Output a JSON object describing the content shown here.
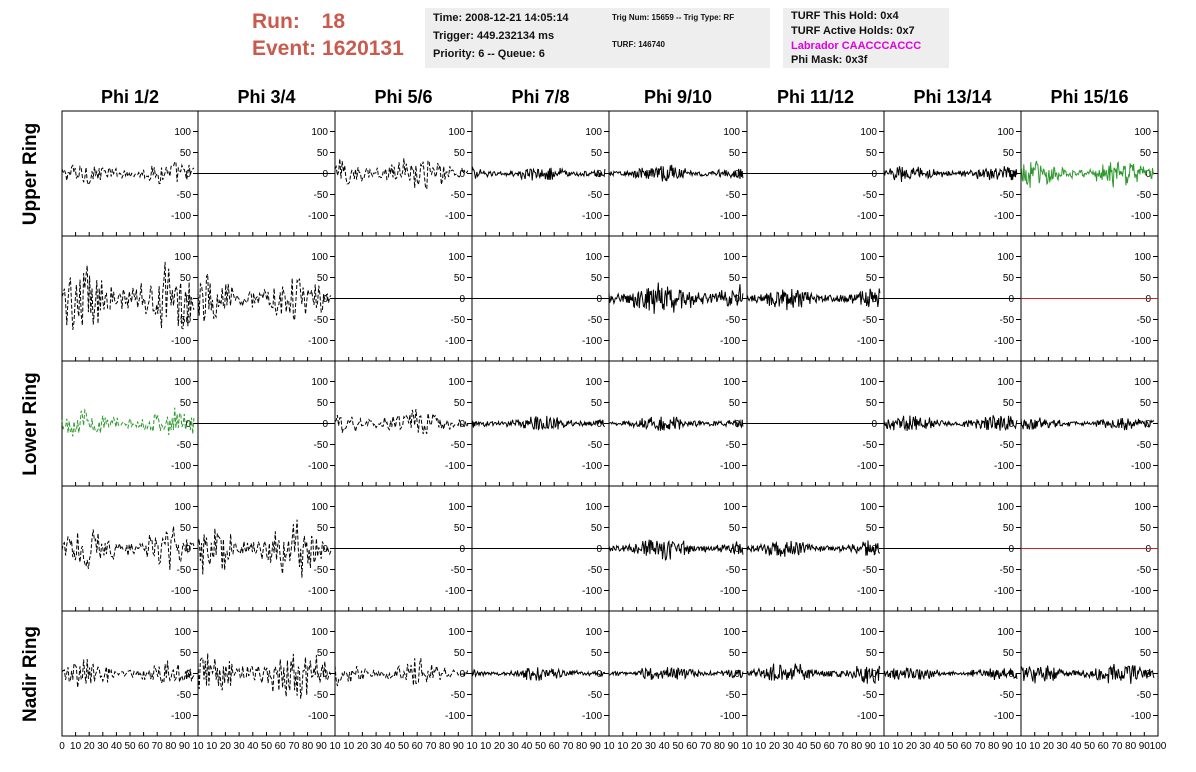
{
  "run_label": "Run:",
  "run_value": "18",
  "event_label": "Event:",
  "event_value": "1620131",
  "info_time": {
    "time": "Time: 2008-12-21 14:05:14",
    "trigger": "Trigger: 449.232134 ms",
    "priority": "Priority: 6 -- Queue: 6"
  },
  "info_trig": {
    "trig": "Trig Num: 15659 -- Trig Type: RF",
    "turf": "TURF: 146740"
  },
  "info_turf": {
    "this_hold": "TURF This Hold: 0x4",
    "active_holds": "TURF Active Holds: 0x7",
    "labrador": "Labrador CAACCCACCC",
    "phi_mask": "Phi Mask: 0x3f"
  },
  "colors": {
    "run_text": "#c95a4d",
    "labrador_text": "#e000e0",
    "trace_default": "#000000",
    "trace_green": "#2e9a2e",
    "trace_red": "#cc2222",
    "info_bg": "#eeeeee"
  },
  "chart_data": {
    "type": "line",
    "columns": [
      "Phi 1/2",
      "Phi 3/4",
      "Phi 5/6",
      "Phi 7/8",
      "Phi 9/10",
      "Phi 11/12",
      "Phi 13/14",
      "Phi 15/16"
    ],
    "rows": [
      "Upper Ring",
      "",
      "Lower Ring",
      "",
      "Nadir Ring"
    ],
    "xlim": [
      0,
      100
    ],
    "ylim": [
      -125,
      125
    ],
    "ytick_values": [
      -100,
      -50,
      0,
      50,
      100
    ],
    "xtick_values": [
      0,
      10,
      20,
      30,
      40,
      50,
      60,
      70,
      80,
      90,
      100
    ],
    "xtick_labels_first": [
      "0",
      "10",
      "20",
      "30",
      "40",
      "50",
      "60",
      "70",
      "80",
      "90",
      "10"
    ],
    "xtick_labels_rest": [
      "",
      "10",
      "20",
      "30",
      "40",
      "50",
      "60",
      "70",
      "80",
      "90",
      "10"
    ],
    "xtick_labels_last": [
      "",
      "10",
      "20",
      "30",
      "40",
      "50",
      "60",
      "70",
      "80",
      "90",
      "100"
    ],
    "grid": false,
    "panels": [
      [
        {
          "style": "dashed",
          "color": "black",
          "amplitude": 25,
          "x_end": 97
        },
        {
          "style": "flat",
          "color": "black",
          "amplitude": 0,
          "x_end": 100
        },
        {
          "style": "dashed",
          "color": "black",
          "amplitude": 38,
          "x_end": 97
        },
        {
          "style": "solid",
          "color": "black",
          "amplitude": 16,
          "x_end": 97
        },
        {
          "style": "solid",
          "color": "black",
          "amplitude": 18,
          "x_end": 97
        },
        {
          "style": "flat",
          "color": "black",
          "amplitude": 0,
          "x_end": 100
        },
        {
          "style": "solid",
          "color": "black",
          "amplitude": 17,
          "x_end": 97
        },
        {
          "style": "solid",
          "color": "green",
          "amplitude": 28,
          "x_end": 97
        }
      ],
      [
        {
          "style": "dashed",
          "color": "black",
          "amplitude": 75,
          "x_end": 97
        },
        {
          "style": "dashed",
          "color": "black",
          "amplitude": 55,
          "x_end": 97
        },
        {
          "style": "flat",
          "color": "black",
          "amplitude": 0,
          "x_end": 100
        },
        {
          "style": "flat",
          "color": "black",
          "amplitude": 0,
          "x_end": 100
        },
        {
          "style": "solid",
          "color": "black",
          "amplitude": 35,
          "x_end": 97
        },
        {
          "style": "solid",
          "color": "black",
          "amplitude": 22,
          "x_end": 97
        },
        {
          "style": "flat",
          "color": "black",
          "amplitude": 0,
          "x_end": 100
        },
        {
          "style": "flat",
          "color": "red",
          "amplitude": 0,
          "x_end": 100
        }
      ],
      [
        {
          "style": "dashed",
          "color": "green",
          "amplitude": 30,
          "x_end": 97
        },
        {
          "style": "flat",
          "color": "black",
          "amplitude": 0,
          "x_end": 100
        },
        {
          "style": "dashed",
          "color": "black",
          "amplitude": 30,
          "x_end": 97
        },
        {
          "style": "solid",
          "color": "black",
          "amplitude": 16,
          "x_end": 97
        },
        {
          "style": "solid",
          "color": "black",
          "amplitude": 16,
          "x_end": 97
        },
        {
          "style": "flat",
          "color": "black",
          "amplitude": 0,
          "x_end": 100
        },
        {
          "style": "solid",
          "color": "black",
          "amplitude": 18,
          "x_end": 97
        },
        {
          "style": "solid",
          "color": "black",
          "amplitude": 14,
          "x_end": 97
        }
      ],
      [
        {
          "style": "dashed",
          "color": "black",
          "amplitude": 45,
          "x_end": 97
        },
        {
          "style": "dashed",
          "color": "black",
          "amplitude": 60,
          "x_end": 97
        },
        {
          "style": "flat",
          "color": "black",
          "amplitude": 0,
          "x_end": 100
        },
        {
          "style": "flat",
          "color": "black",
          "amplitude": 0,
          "x_end": 100
        },
        {
          "style": "solid",
          "color": "black",
          "amplitude": 22,
          "x_end": 97
        },
        {
          "style": "solid",
          "color": "black",
          "amplitude": 18,
          "x_end": 97
        },
        {
          "style": "flat",
          "color": "black",
          "amplitude": 0,
          "x_end": 100
        },
        {
          "style": "flat",
          "color": "red",
          "amplitude": 0,
          "x_end": 100
        }
      ],
      [
        {
          "style": "dashed",
          "color": "black",
          "amplitude": 30,
          "x_end": 97
        },
        {
          "style": "dashed",
          "color": "black",
          "amplitude": 55,
          "x_end": 97
        },
        {
          "style": "dashed",
          "color": "black",
          "amplitude": 30,
          "x_end": 97
        },
        {
          "style": "solid",
          "color": "black",
          "amplitude": 15,
          "x_end": 97
        },
        {
          "style": "solid",
          "color": "black",
          "amplitude": 15,
          "x_end": 97
        },
        {
          "style": "solid",
          "color": "black",
          "amplitude": 22,
          "x_end": 97
        },
        {
          "style": "solid",
          "color": "black",
          "amplitude": 14,
          "x_end": 97
        },
        {
          "style": "solid",
          "color": "black",
          "amplitude": 22,
          "x_end": 97
        }
      ]
    ]
  }
}
